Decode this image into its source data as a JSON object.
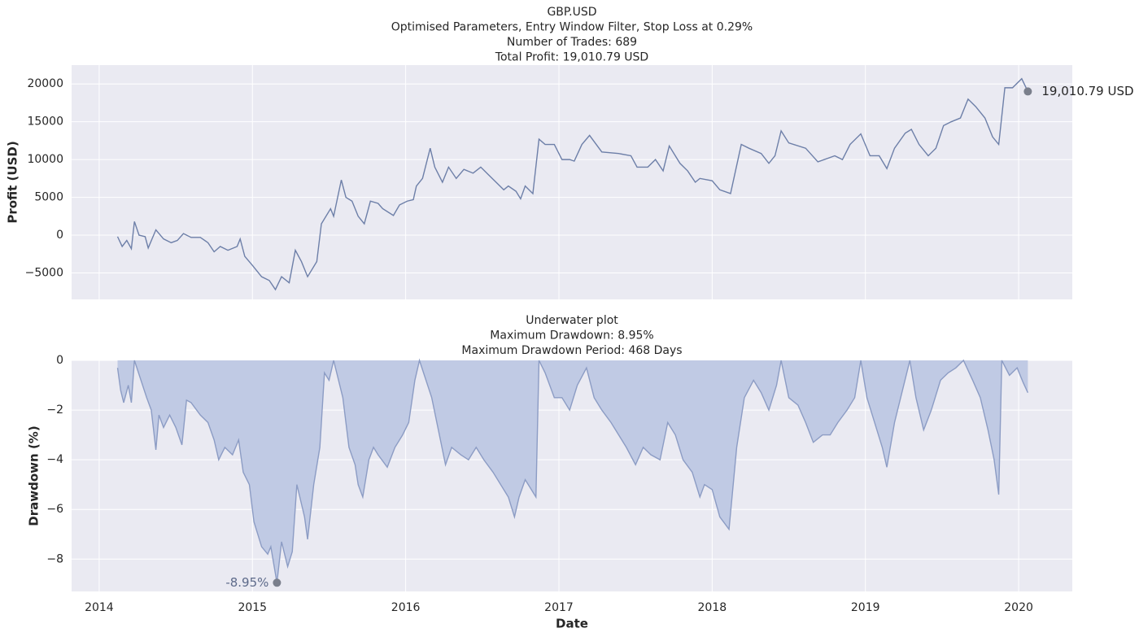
{
  "chart_data": [
    {
      "type": "line",
      "title": [
        "GBP.USD",
        "Optimised Parameters, Entry Window Filter, Stop Loss at 0.29%",
        "Number of Trades: 689",
        "Total Profit: 19,010.79 USD"
      ],
      "ylabel": "Profit (USD)",
      "x": [
        2014.12,
        2014.15,
        2014.18,
        2014.21,
        2014.23,
        2014.26,
        2014.3,
        2014.32,
        2014.37,
        2014.42,
        2014.47,
        2014.51,
        2014.55,
        2014.6,
        2014.66,
        2014.71,
        2014.75,
        2014.79,
        2014.84,
        2014.9,
        2014.92,
        2014.95,
        2015.0,
        2015.06,
        2015.11,
        2015.15,
        2015.19,
        2015.24,
        2015.28,
        2015.32,
        2015.36,
        2015.42,
        2015.45,
        2015.51,
        2015.53,
        2015.58,
        2015.61,
        2015.65,
        2015.69,
        2015.73,
        2015.77,
        2015.82,
        2015.85,
        2015.92,
        2015.96,
        2016.01,
        2016.05,
        2016.07,
        2016.11,
        2016.16,
        2016.19,
        2016.24,
        2016.28,
        2016.33,
        2016.38,
        2016.44,
        2016.49,
        2016.54,
        2016.59,
        2016.64,
        2016.67,
        2016.72,
        2016.75,
        2016.78,
        2016.83,
        2016.87,
        2016.91,
        2016.97,
        2017.02,
        2017.07,
        2017.1,
        2017.15,
        2017.2,
        2017.28,
        2017.39,
        2017.47,
        2017.51,
        2017.58,
        2017.63,
        2017.68,
        2017.72,
        2017.79,
        2017.84,
        2017.89,
        2017.92,
        2018.0,
        2018.05,
        2018.12,
        2018.19,
        2018.24,
        2018.32,
        2018.37,
        2018.41,
        2018.45,
        2018.5,
        2018.61,
        2018.69,
        2018.8,
        2018.85,
        2018.9,
        2018.97,
        2019.03,
        2019.09,
        2019.14,
        2019.19,
        2019.26,
        2019.3,
        2019.35,
        2019.41,
        2019.46,
        2019.51,
        2019.56,
        2019.62,
        2019.67,
        2019.72,
        2019.78,
        2019.83,
        2019.87,
        2019.91,
        2019.96,
        2020.02,
        2020.06
      ],
      "series": [
        {
          "color": "#6d7fa8",
          "values": [
            -200,
            -1500,
            -700,
            -1800,
            1800,
            0,
            -200,
            -1700,
            700,
            -500,
            -1000,
            -700,
            200,
            -300,
            -300,
            -1000,
            -2200,
            -1500,
            -2000,
            -1500,
            -500,
            -2800,
            -4000,
            -5500,
            -6000,
            -7200,
            -5500,
            -6300,
            -2000,
            -3500,
            -5500,
            -3500,
            1500,
            3500,
            2500,
            7300,
            5000,
            4500,
            2500,
            1500,
            4500,
            4200,
            3500,
            2600,
            4000,
            4500,
            4700,
            6500,
            7500,
            11500,
            9000,
            7000,
            9000,
            7500,
            8700,
            8200,
            9000,
            8000,
            7000,
            6000,
            6500,
            5800,
            4800,
            6500,
            5500,
            12700,
            12000,
            12000,
            10000,
            10000,
            9800,
            12000,
            13200,
            11000,
            10800,
            10500,
            9000,
            9000,
            10000,
            8500,
            11800,
            9500,
            8500,
            7000,
            7500,
            7200,
            6000,
            5500,
            12000,
            11500,
            10800,
            9500,
            10500,
            13800,
            12200,
            11500,
            9700,
            10500,
            10000,
            12000,
            13400,
            10500,
            10500,
            8800,
            11500,
            13500,
            14000,
            12000,
            10500,
            11500,
            14500,
            15000,
            15500,
            18000,
            17000,
            15500,
            13000,
            12000,
            19500,
            19500,
            20700,
            19010.79
          ]
        }
      ],
      "annotation": {
        "text": "19,010.79 USD",
        "x": 2020.06,
        "y": 19010.79
      },
      "xlim": [
        2013.82,
        2020.35
      ],
      "xticks": [
        2014,
        2015,
        2016,
        2017,
        2018,
        2019,
        2020
      ],
      "ylim": [
        -8500,
        22500
      ],
      "yticks": [
        {
          "value": -5000,
          "label": "−5000"
        },
        0,
        5000,
        10000,
        15000,
        20000
      ],
      "grid": true
    },
    {
      "type": "area",
      "title": [
        "Underwater plot",
        "Maximum Drawdown: 8.95%",
        "Maximum Drawdown Period: 468 Days"
      ],
      "xlabel": "Date",
      "ylabel": "Drawdown (%)",
      "x": [
        2014.12,
        2014.14,
        2014.16,
        2014.19,
        2014.21,
        2014.23,
        2014.31,
        2014.34,
        2014.37,
        2014.39,
        2014.42,
        2014.46,
        2014.5,
        2014.54,
        2014.57,
        2014.6,
        2014.66,
        2014.71,
        2014.75,
        2014.78,
        2014.82,
        2014.87,
        2014.91,
        2014.94,
        2014.98,
        2015.01,
        2015.06,
        2015.1,
        2015.12,
        2015.16,
        2015.19,
        2015.23,
        2015.26,
        2015.29,
        2015.34,
        2015.36,
        2015.4,
        2015.44,
        2015.47,
        2015.5,
        2015.53,
        2015.59,
        2015.63,
        2015.67,
        2015.69,
        2015.72,
        2015.76,
        2015.79,
        2015.82,
        2015.88,
        2015.93,
        2015.98,
        2016.02,
        2016.06,
        2016.09,
        2016.17,
        2016.22,
        2016.26,
        2016.3,
        2016.36,
        2016.41,
        2016.46,
        2016.51,
        2016.57,
        2016.62,
        2016.67,
        2016.71,
        2016.74,
        2016.78,
        2016.82,
        2016.85,
        2016.87,
        2016.91,
        2016.97,
        2017.02,
        2017.07,
        2017.12,
        2017.18,
        2017.23,
        2017.28,
        2017.34,
        2017.39,
        2017.44,
        2017.5,
        2017.55,
        2017.6,
        2017.66,
        2017.71,
        2017.76,
        2017.81,
        2017.87,
        2017.92,
        2017.95,
        2018.0,
        2018.05,
        2018.11,
        2018.16,
        2018.21,
        2018.27,
        2018.32,
        2018.37,
        2018.42,
        2018.45,
        2018.5,
        2018.56,
        2018.61,
        2018.66,
        2018.72,
        2018.77,
        2018.82,
        2018.88,
        2018.93,
        2018.97,
        2019.01,
        2019.06,
        2019.11,
        2019.14,
        2019.19,
        2019.25,
        2019.29,
        2019.33,
        2019.38,
        2019.43,
        2019.49,
        2019.54,
        2019.59,
        2019.64,
        2019.7,
        2019.75,
        2019.8,
        2019.84,
        2019.87,
        2019.89,
        2019.94,
        2019.99,
        2020.03,
        2020.06
      ],
      "series": [
        {
          "color": "#8c9cc4",
          "fill": "#c0cae4",
          "values": [
            -0.3,
            -1.2,
            -1.7,
            -1.0,
            -1.7,
            0,
            -1.5,
            -2.0,
            -3.6,
            -2.2,
            -2.7,
            -2.2,
            -2.7,
            -3.4,
            -1.6,
            -1.7,
            -2.2,
            -2.5,
            -3.2,
            -4.0,
            -3.5,
            -3.8,
            -3.2,
            -4.5,
            -5.0,
            -6.5,
            -7.5,
            -7.8,
            -7.5,
            -8.95,
            -7.3,
            -8.3,
            -7.7,
            -5.0,
            -6.3,
            -7.2,
            -5.0,
            -3.5,
            -0.5,
            -0.8,
            0,
            -1.5,
            -3.5,
            -4.2,
            -5.0,
            -5.5,
            -4.0,
            -3.5,
            -3.8,
            -4.3,
            -3.5,
            -3.0,
            -2.5,
            -0.8,
            0,
            -1.5,
            -3.0,
            -4.2,
            -3.5,
            -3.8,
            -4.0,
            -3.5,
            -4.0,
            -4.5,
            -5.0,
            -5.5,
            -6.3,
            -5.5,
            -4.8,
            -5.2,
            -5.5,
            0,
            -0.5,
            -1.5,
            -1.5,
            -2.0,
            -1.0,
            -0.3,
            -1.5,
            -2.0,
            -2.5,
            -3.0,
            -3.5,
            -4.2,
            -3.5,
            -3.8,
            -4.0,
            -2.5,
            -3.0,
            -4.0,
            -4.5,
            -5.5,
            -5.0,
            -5.2,
            -6.3,
            -6.8,
            -3.5,
            -1.5,
            -0.8,
            -1.3,
            -2.0,
            -1.0,
            0,
            -1.5,
            -1.8,
            -2.5,
            -3.3,
            -3.0,
            -3.0,
            -2.5,
            -2.0,
            -1.5,
            0,
            -1.5,
            -2.5,
            -3.5,
            -4.3,
            -2.5,
            -1.0,
            0,
            -1.5,
            -2.8,
            -2.0,
            -0.8,
            -0.5,
            -0.3,
            0,
            -0.8,
            -1.5,
            -2.8,
            -4.0,
            -5.4,
            0,
            -0.6,
            -0.3,
            -0.9,
            -1.3
          ]
        }
      ],
      "annotation": {
        "text": "-8.95%",
        "x": 2015.16,
        "y": -8.95
      },
      "xlim": [
        2013.82,
        2020.35
      ],
      "xticks": [
        2014,
        2015,
        2016,
        2017,
        2018,
        2019,
        2020
      ],
      "ylim": [
        -9.3,
        0
      ],
      "yticks": [
        {
          "value": -8,
          "label": "−8"
        },
        {
          "value": -6,
          "label": "−6"
        },
        {
          "value": -4,
          "label": "−4"
        },
        {
          "value": -2,
          "label": "−2"
        },
        0
      ],
      "grid": true
    }
  ]
}
